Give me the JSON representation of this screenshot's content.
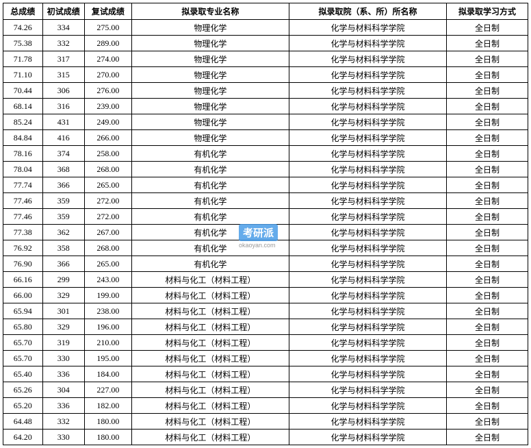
{
  "table": {
    "headers": {
      "total": "总成绩",
      "initial": "初试成绩",
      "review": "复试成绩",
      "major": "拟录取专业名称",
      "dept": "拟录取院（系、所）所名称",
      "mode": "拟录取学习方式"
    },
    "rows": [
      {
        "total": "74.26",
        "initial": "334",
        "review": "275.00",
        "major": "物理化学",
        "dept": "化学与材料科学学院",
        "mode": "全日制"
      },
      {
        "total": "75.38",
        "initial": "332",
        "review": "289.00",
        "major": "物理化学",
        "dept": "化学与材料科学学院",
        "mode": "全日制"
      },
      {
        "total": "71.78",
        "initial": "317",
        "review": "274.00",
        "major": "物理化学",
        "dept": "化学与材料科学学院",
        "mode": "全日制"
      },
      {
        "total": "71.10",
        "initial": "315",
        "review": "270.00",
        "major": "物理化学",
        "dept": "化学与材料科学学院",
        "mode": "全日制"
      },
      {
        "total": "70.44",
        "initial": "306",
        "review": "276.00",
        "major": "物理化学",
        "dept": "化学与材料科学学院",
        "mode": "全日制"
      },
      {
        "total": "68.14",
        "initial": "316",
        "review": "239.00",
        "major": "物理化学",
        "dept": "化学与材料科学学院",
        "mode": "全日制"
      },
      {
        "total": "85.24",
        "initial": "431",
        "review": "249.00",
        "major": "物理化学",
        "dept": "化学与材料科学学院",
        "mode": "全日制"
      },
      {
        "total": "84.84",
        "initial": "416",
        "review": "266.00",
        "major": "物理化学",
        "dept": "化学与材料科学学院",
        "mode": "全日制"
      },
      {
        "total": "78.16",
        "initial": "374",
        "review": "258.00",
        "major": "有机化学",
        "dept": "化学与材料科学学院",
        "mode": "全日制"
      },
      {
        "total": "78.04",
        "initial": "368",
        "review": "268.00",
        "major": "有机化学",
        "dept": "化学与材料科学学院",
        "mode": "全日制"
      },
      {
        "total": "77.74",
        "initial": "366",
        "review": "265.00",
        "major": "有机化学",
        "dept": "化学与材料科学学院",
        "mode": "全日制"
      },
      {
        "total": "77.46",
        "initial": "359",
        "review": "272.00",
        "major": "有机化学",
        "dept": "化学与材料科学学院",
        "mode": "全日制"
      },
      {
        "total": "77.46",
        "initial": "359",
        "review": "272.00",
        "major": "有机化学",
        "dept": "化学与材料科学学院",
        "mode": "全日制"
      },
      {
        "total": "77.38",
        "initial": "362",
        "review": "267.00",
        "major": "有机化学",
        "dept": "化学与材料科学学院",
        "mode": "全日制"
      },
      {
        "total": "76.92",
        "initial": "358",
        "review": "268.00",
        "major": "有机化学",
        "dept": "化学与材料科学学院",
        "mode": "全日制"
      },
      {
        "total": "76.90",
        "initial": "366",
        "review": "265.00",
        "major": "有机化学",
        "dept": "化学与材料科学学院",
        "mode": "全日制"
      },
      {
        "total": "66.16",
        "initial": "299",
        "review": "243.00",
        "major": "材料与化工（材料工程）",
        "dept": "化学与材料科学学院",
        "mode": "全日制"
      },
      {
        "total": "66.00",
        "initial": "329",
        "review": "199.00",
        "major": "材料与化工（材料工程）",
        "dept": "化学与材料科学学院",
        "mode": "全日制"
      },
      {
        "total": "65.94",
        "initial": "301",
        "review": "238.00",
        "major": "材料与化工（材料工程）",
        "dept": "化学与材料科学学院",
        "mode": "全日制"
      },
      {
        "total": "65.80",
        "initial": "329",
        "review": "196.00",
        "major": "材料与化工（材料工程）",
        "dept": "化学与材料科学学院",
        "mode": "全日制"
      },
      {
        "total": "65.70",
        "initial": "319",
        "review": "210.00",
        "major": "材料与化工（材料工程）",
        "dept": "化学与材料科学学院",
        "mode": "全日制"
      },
      {
        "total": "65.70",
        "initial": "330",
        "review": "195.00",
        "major": "材料与化工（材料工程）",
        "dept": "化学与材料科学学院",
        "mode": "全日制"
      },
      {
        "total": "65.40",
        "initial": "336",
        "review": "184.00",
        "major": "材料与化工（材料工程）",
        "dept": "化学与材料科学学院",
        "mode": "全日制"
      },
      {
        "total": "65.26",
        "initial": "304",
        "review": "227.00",
        "major": "材料与化工（材料工程）",
        "dept": "化学与材料科学学院",
        "mode": "全日制"
      },
      {
        "total": "65.20",
        "initial": "336",
        "review": "182.00",
        "major": "材料与化工（材料工程）",
        "dept": "化学与材料科学学院",
        "mode": "全日制"
      },
      {
        "total": "64.48",
        "initial": "332",
        "review": "180.00",
        "major": "材料与化工（材料工程）",
        "dept": "化学与材料科学学院",
        "mode": "全日制"
      },
      {
        "total": "64.20",
        "initial": "330",
        "review": "180.00",
        "major": "材料与化工（材料工程）",
        "dept": "化学与材料科学学院",
        "mode": "全日制"
      }
    ]
  },
  "watermark": {
    "text": "考研派",
    "url": "okaoyan.com",
    "box_color": "#4a9de8",
    "text_color": "#ffffff",
    "url_color": "#888888"
  },
  "style": {
    "border_color": "#000000",
    "background_color": "#ffffff",
    "font_size_body": 12,
    "font_size_header": 12
  }
}
